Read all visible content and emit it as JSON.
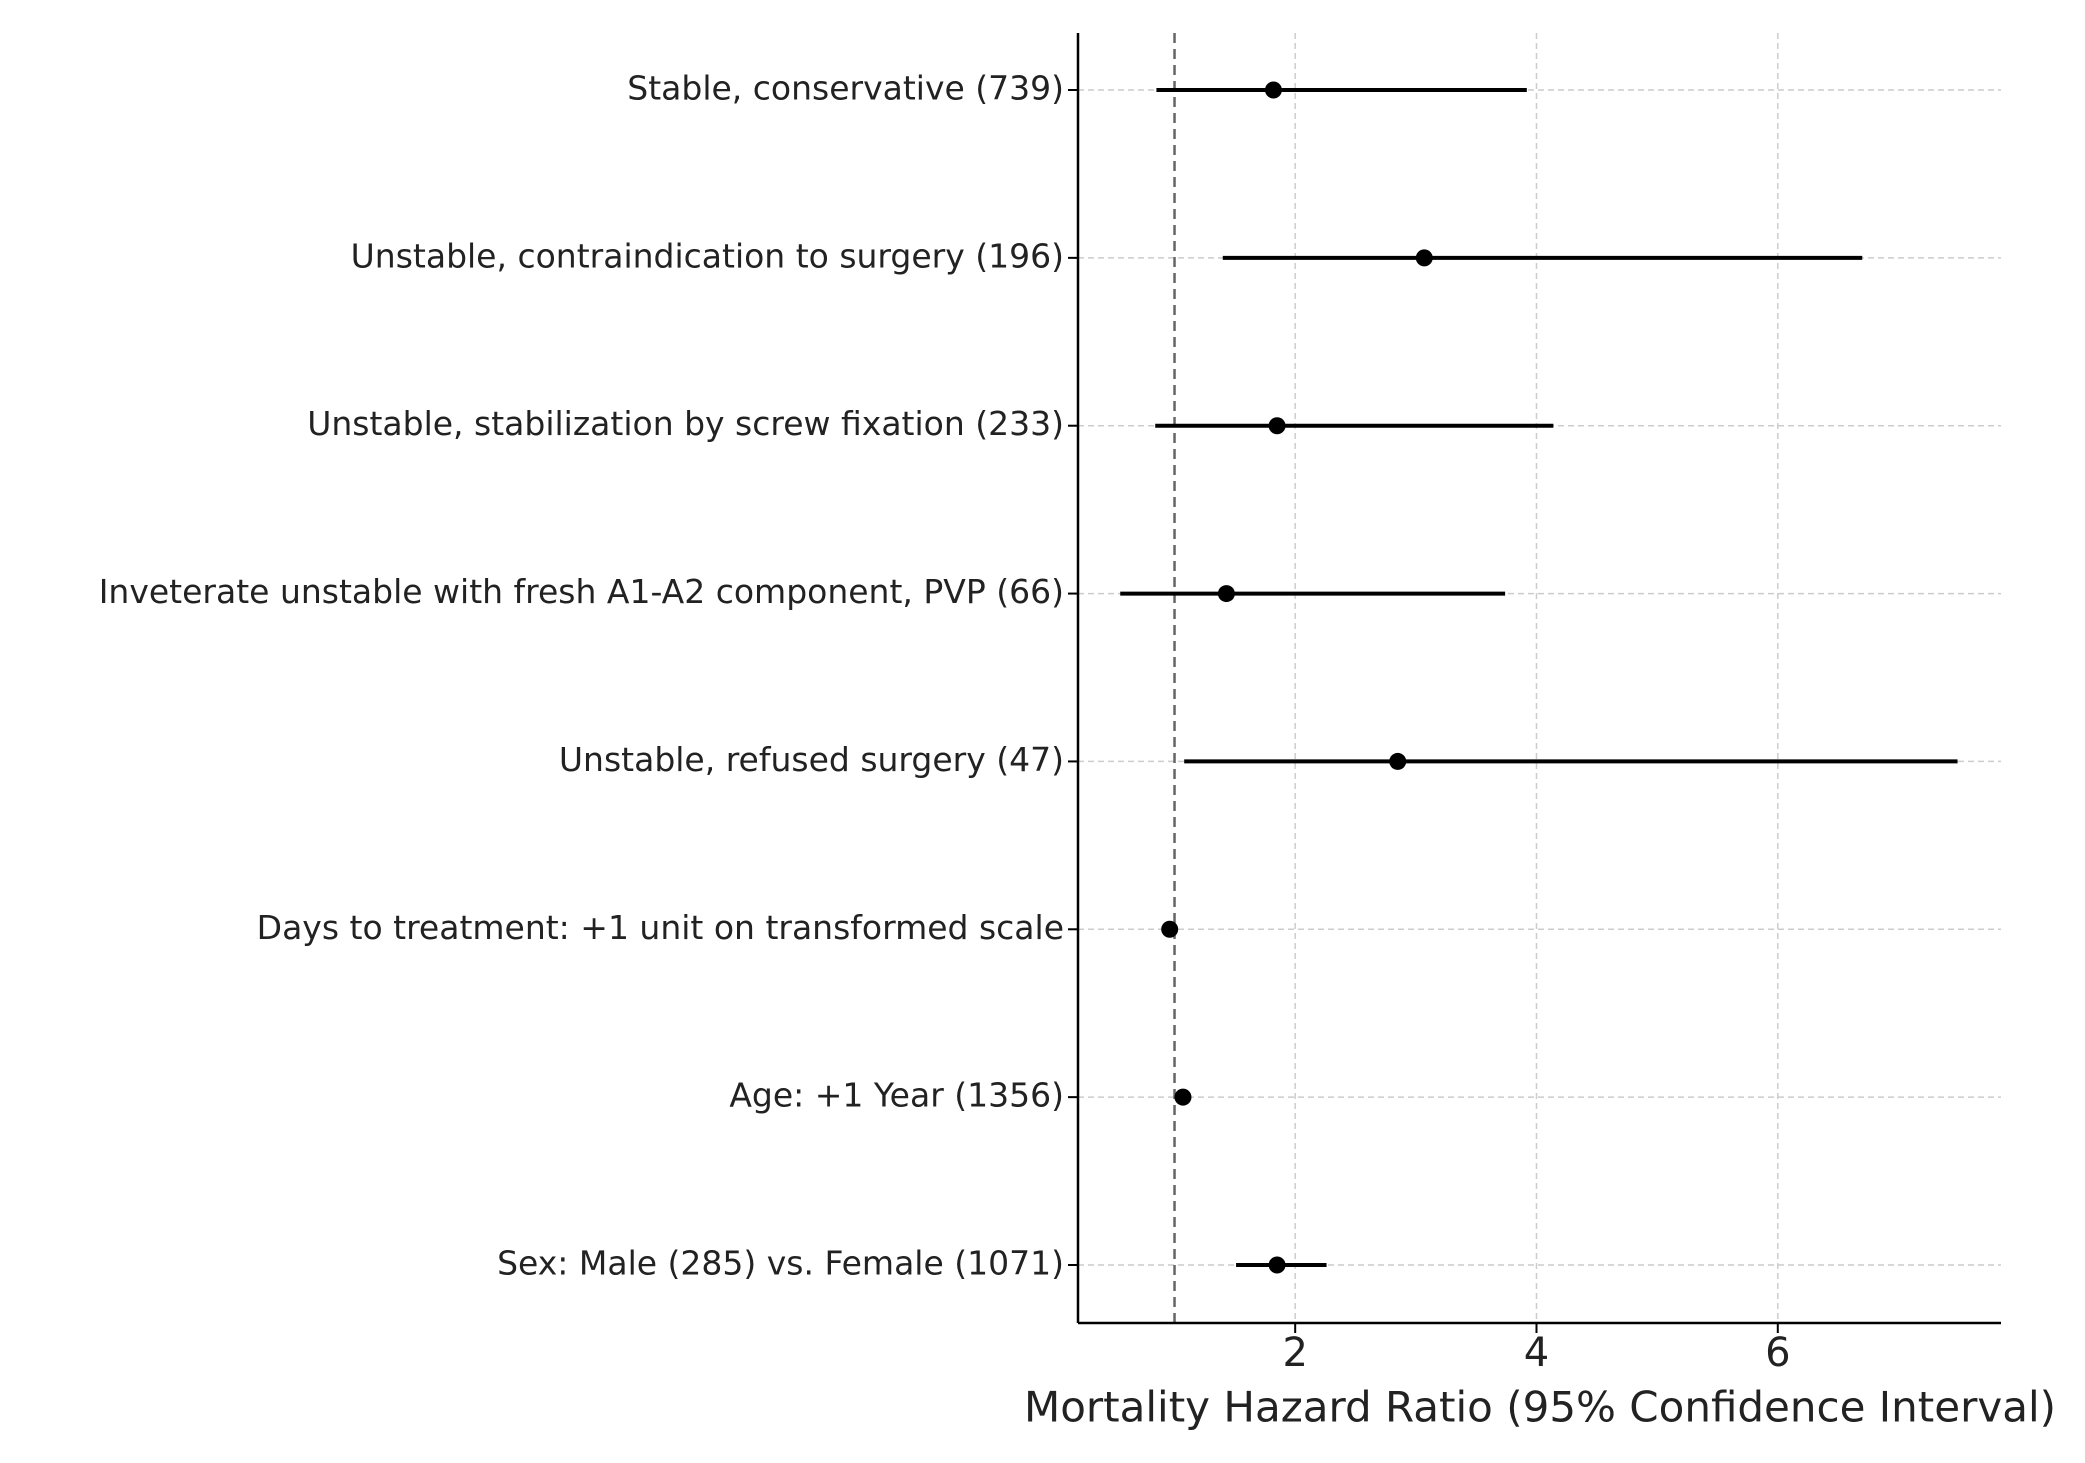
{
  "chart_data": {
    "type": "forest",
    "x_label": "Mortality Hazard Ratio (95% Confidence Interval)",
    "categories": [
      "Stable, conservative (739)",
      "Unstable, contraindication to surgery (196)",
      "Unstable, stabilization by screw fixation (233)",
      "Inveterate unstable with fresh A1-A2 component, PVP (66)",
      "Unstable, refused surgery (47)",
      "Days to treatment: +1 unit on transformed scale",
      "Age: +1 Year (1356)",
      "Sex: Male (285) vs. Female (1071)"
    ],
    "values": [
      1.82,
      3.07,
      1.85,
      1.43,
      2.85,
      0.96,
      1.07,
      1.85
    ],
    "ci_lower": [
      0.85,
      1.4,
      0.84,
      0.55,
      1.08,
      0.94,
      1.05,
      1.51
    ],
    "ci_upper": [
      3.92,
      6.7,
      4.14,
      3.74,
      7.49,
      0.98,
      1.09,
      2.26
    ],
    "color": "#000000",
    "reference_line": 1,
    "xlim": [
      0.2,
      7.85
    ],
    "xticks": [
      2,
      4,
      6
    ],
    "grid": true
  }
}
